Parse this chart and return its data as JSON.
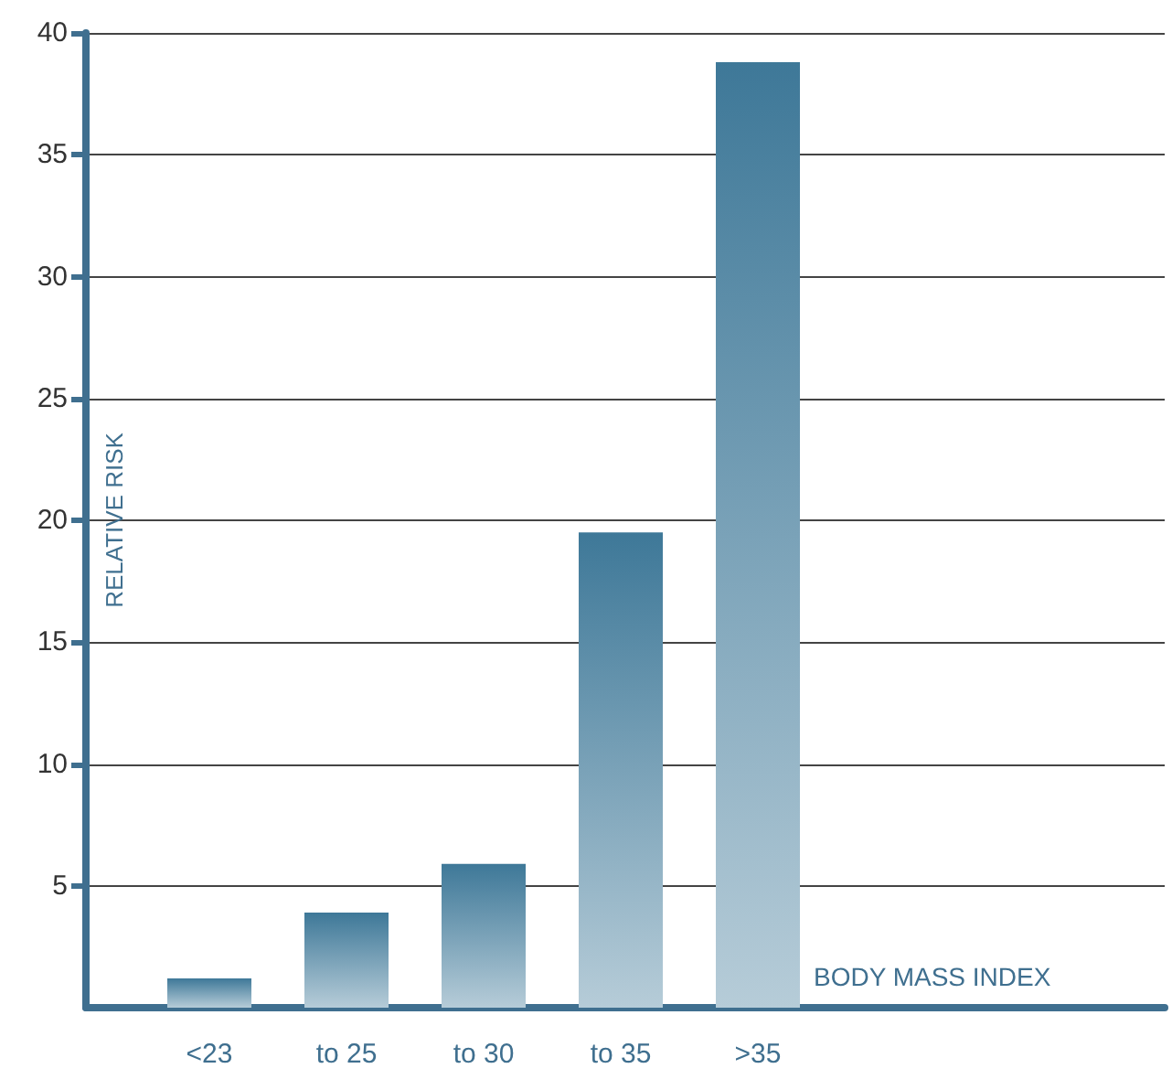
{
  "chart_data": {
    "type": "bar",
    "xlabel": "BODY MASS INDEX",
    "ylabel": "RELATIVE RISK",
    "categories": [
      "<23",
      "to 25",
      "to 30",
      "to 35",
      ">35"
    ],
    "values": [
      1.2,
      3.9,
      5.9,
      19.5,
      38.8
    ],
    "color": "#3e7898",
    "ylim": [
      0,
      40
    ],
    "yticks": [
      5,
      10,
      15,
      20,
      25,
      30,
      35,
      40
    ],
    "grid": "y"
  }
}
